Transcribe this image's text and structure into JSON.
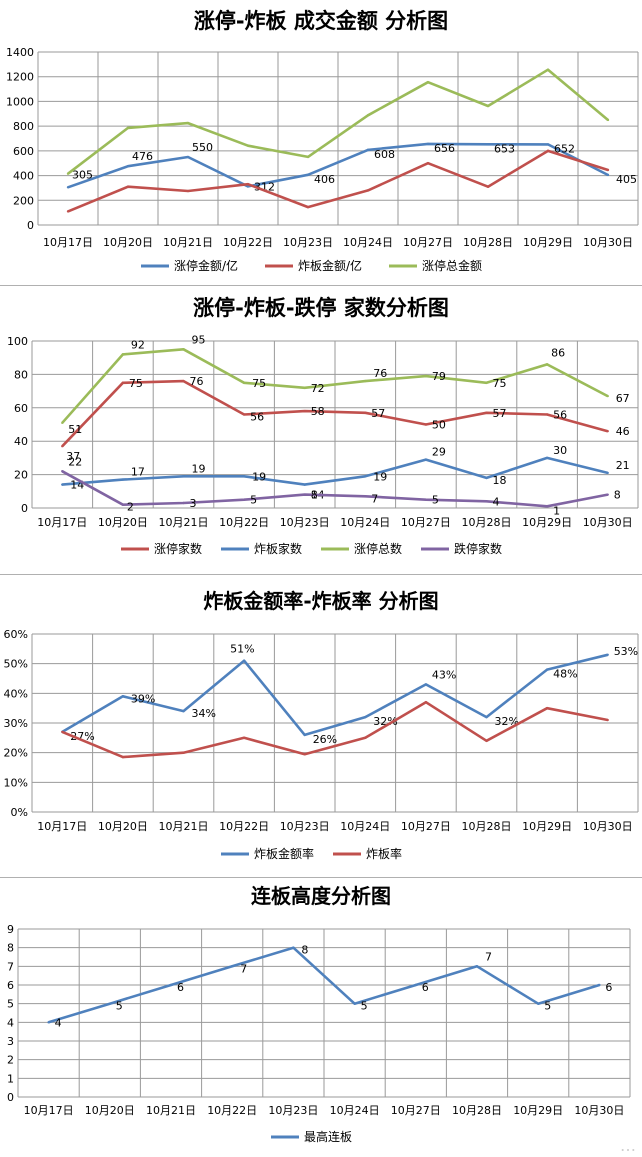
{
  "chart_data": [
    {
      "type": "line",
      "title": "涨停-炸板 成交金额 分析图",
      "categories": [
        "10月17日",
        "10月20日",
        "10月21日",
        "10月22日",
        "10月23日",
        "10月24日",
        "10月27日",
        "10月28日",
        "10月29日",
        "10月30日"
      ],
      "ylim": [
        0,
        1400
      ],
      "yticks": [
        "0",
        "200",
        "400",
        "600",
        "800",
        "1000",
        "1200",
        "1400"
      ],
      "grid": true,
      "legend_position": "bottom",
      "series": [
        {
          "name": "涨停金额/亿",
          "color": "#4F81BD",
          "values": [
            305,
            476,
            550,
            312,
            406,
            608,
            656,
            653,
            652,
            405
          ],
          "labels": [
            "305",
            "476",
            "550",
            "312",
            "406",
            "608",
            "656",
            "653",
            "652",
            "405"
          ]
        },
        {
          "name": "炸板金额/亿",
          "color": "#C0504D",
          "values": [
            110,
            310,
            275,
            330,
            145,
            280,
            500,
            310,
            600,
            445
          ],
          "labels": []
        },
        {
          "name": "涨停总金额",
          "color": "#9BBB59",
          "values": [
            415,
            786,
            825,
            642,
            551,
            888,
            1156,
            963,
            1257,
            850
          ],
          "labels": []
        }
      ]
    },
    {
      "type": "line",
      "title": "涨停-炸板-跌停 家数分析图",
      "categories": [
        "10月17日",
        "10月20日",
        "10月21日",
        "10月22日",
        "10月23日",
        "10月24日",
        "10月27日",
        "10月28日",
        "10月29日",
        "10月30日"
      ],
      "ylim": [
        0,
        100
      ],
      "yticks": [
        "0",
        "20",
        "40",
        "60",
        "80",
        "100"
      ],
      "grid": true,
      "legend_position": "bottom",
      "series": [
        {
          "name": "涨停家数",
          "color": "#C0504D",
          "values": [
            37,
            75,
            76,
            56,
            58,
            57,
            50,
            57,
            56,
            46
          ],
          "labels": [
            "37",
            "75",
            "76",
            "56",
            "58",
            "57",
            "50",
            "57",
            "56",
            "46"
          ]
        },
        {
          "name": "炸板家数",
          "color": "#4F81BD",
          "values": [
            14,
            17,
            19,
            19,
            14,
            19,
            29,
            18,
            30,
            21
          ],
          "labels": [
            "14",
            "17",
            "19",
            "19",
            "14",
            "19",
            "29",
            "18",
            "30",
            "21"
          ]
        },
        {
          "name": "涨停总数",
          "color": "#9BBB59",
          "values": [
            51,
            92,
            95,
            75,
            72,
            76,
            79,
            75,
            86,
            67
          ],
          "labels": [
            "51",
            "92",
            "95",
            "75",
            "72",
            "76",
            "79",
            "75",
            "86",
            "67"
          ]
        },
        {
          "name": "跌停家数",
          "color": "#8064A2",
          "values": [
            22,
            2,
            3,
            5,
            8,
            7,
            5,
            4,
            1,
            8
          ],
          "labels": [
            "22",
            "2",
            "3",
            "5",
            "8",
            "7",
            "5",
            "4",
            "1",
            "8"
          ]
        }
      ]
    },
    {
      "type": "line",
      "title": "炸板金额率-炸板率 分析图",
      "categories": [
        "10月17日",
        "10月20日",
        "10月21日",
        "10月22日",
        "10月23日",
        "10月24日",
        "10月27日",
        "10月28日",
        "10月29日",
        "10月30日"
      ],
      "ylim": [
        0,
        60
      ],
      "yticks": [
        "0%",
        "10%",
        "20%",
        "30%",
        "40%",
        "50%",
        "60%"
      ],
      "grid": true,
      "legend_position": "bottom",
      "series": [
        {
          "name": "炸板金额率",
          "color": "#4F81BD",
          "values": [
            27,
            39,
            34,
            51,
            26,
            32,
            43,
            32,
            48,
            53
          ],
          "labels": [
            "27%",
            "39%",
            "34%",
            "51%",
            "26%",
            "32%",
            "43%",
            "32%",
            "48%",
            "53%"
          ]
        },
        {
          "name": "炸板率",
          "color": "#C0504D",
          "values": [
            27,
            18.5,
            20,
            25,
            19.5,
            25,
            37,
            24,
            35,
            31
          ],
          "labels": []
        }
      ]
    },
    {
      "type": "line",
      "title": "连板高度分析图",
      "categories": [
        "10月17日",
        "10月20日",
        "10月21日",
        "10月22日",
        "10月23日",
        "10月24日",
        "10月27日",
        "10月28日",
        "10月29日",
        "10月30日"
      ],
      "ylim": [
        0,
        9
      ],
      "yticks": [
        "0",
        "1",
        "2",
        "3",
        "4",
        "5",
        "6",
        "7",
        "8",
        "9"
      ],
      "grid": true,
      "legend_position": "bottom",
      "series": [
        {
          "name": "最高连板",
          "color": "#4F81BD",
          "values": [
            4,
            5,
            6,
            7,
            8,
            5,
            6,
            7,
            5,
            6
          ],
          "labels": [
            "4",
            "5",
            "6",
            "7",
            "8",
            "5",
            "6",
            "7",
            "5",
            "6"
          ]
        }
      ]
    }
  ],
  "watermark": "…"
}
